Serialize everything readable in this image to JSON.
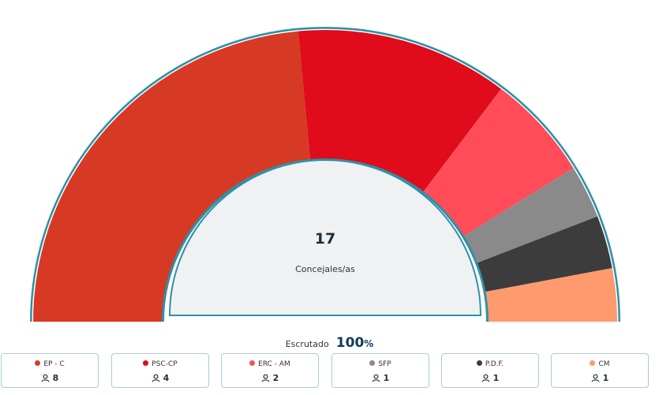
{
  "chart_data": {
    "type": "pie",
    "subtype": "parliament-semicircle",
    "center": {
      "value": "17",
      "label": "Concejales/as"
    },
    "series": [
      {
        "name": "EP - C",
        "value": 8,
        "color": "#d63a25"
      },
      {
        "name": "PSC-CP",
        "value": 4,
        "color": "#e00b1b"
      },
      {
        "name": "ERC - AM",
        "value": 2,
        "color": "#ff4c58"
      },
      {
        "name": "SFP",
        "value": 1,
        "color": "#8a8a8a"
      },
      {
        "name": "P.D.F.",
        "value": 1,
        "color": "#3c3c3c"
      },
      {
        "name": "CM",
        "value": 1,
        "color": "#ff9a6e"
      }
    ],
    "total": 17
  },
  "scrutiny": {
    "label": "Escrutado",
    "value": "100",
    "unit": "%"
  },
  "colors": {
    "outline": "#2d91a8",
    "center_fill": "#eff1f3"
  }
}
